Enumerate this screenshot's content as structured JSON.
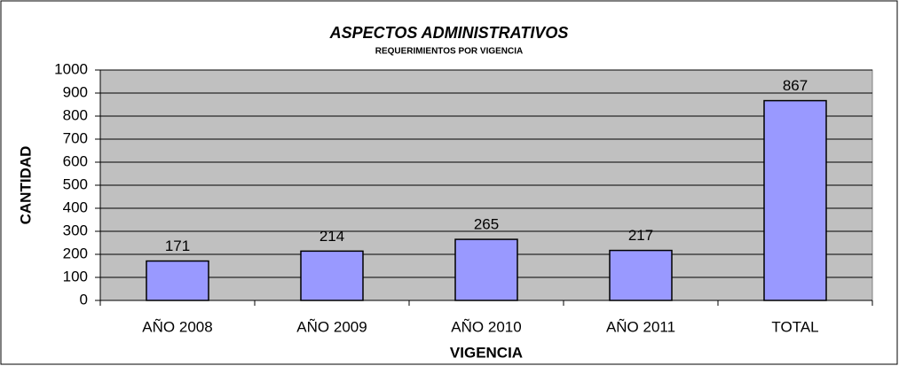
{
  "chart_data": {
    "type": "bar",
    "title": "ASPECTOS ADMINISTRATIVOS",
    "subtitle": "REQUERIMIENTOS POR VIGENCIA",
    "x_label": "VIGENCIA",
    "y_label": "CANTIDAD",
    "categories": [
      "AÑO 2008",
      "AÑO 2009",
      "AÑO 2010",
      "AÑO 2011",
      "TOTAL"
    ],
    "values": [
      171,
      214,
      265,
      217,
      867
    ],
    "color": "#9999ff",
    "ylim": [
      0,
      1000
    ],
    "yticks": [
      0,
      100,
      200,
      300,
      400,
      500,
      600,
      700,
      800,
      900,
      1000
    ],
    "grid": true
  }
}
